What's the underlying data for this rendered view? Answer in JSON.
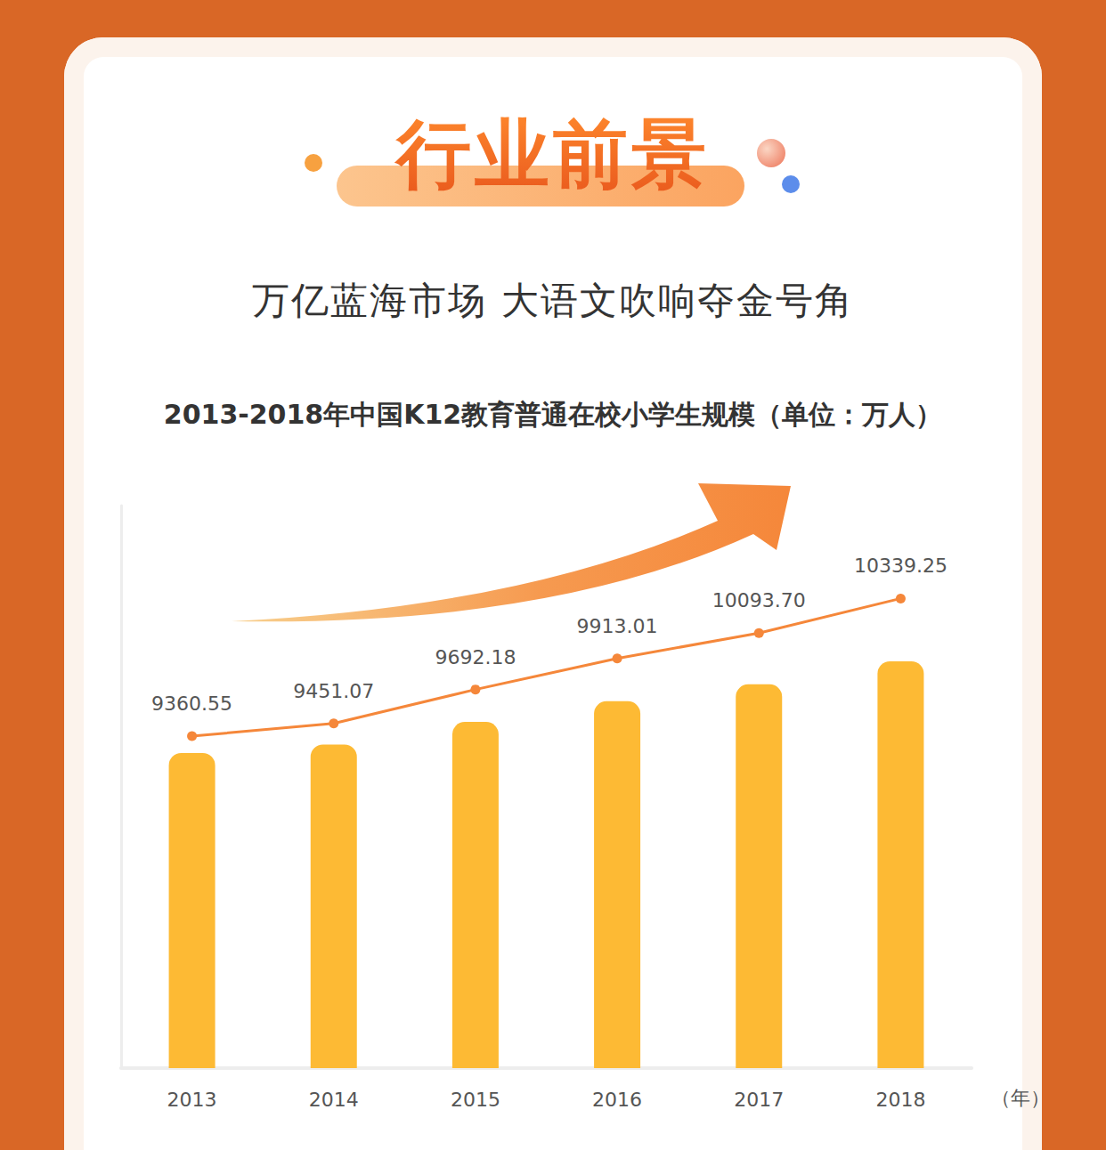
{
  "header": "行业前景",
  "subtitle": "万亿蓝海市场 大语文吹响夺金号角",
  "chart_data": {
    "type": "bar",
    "title": "2013-2018年中国K12教育普通在校小学生规模（单位：万人）",
    "xlabel": "（年）",
    "categories": [
      "2013",
      "2014",
      "2015",
      "2016",
      "2017",
      "2018"
    ],
    "series": [
      {
        "type": "bar",
        "color": "#FDBA34",
        "axis": "y",
        "values": [
          9360.55,
          9451.07,
          9692.18,
          9913.01,
          10093.7,
          10339.25
        ]
      },
      {
        "type": "line",
        "color": "#F5873A",
        "axis": "y2",
        "marker": "circle",
        "line_style": "solid",
        "data_labels": true,
        "values": [
          9360.55,
          9451.07,
          9692.18,
          9913.01,
          10093.7,
          10339.25
        ],
        "value_labels": [
          "9360.55",
          "9451.07",
          "9692.18",
          "9913.01",
          "10093.70",
          "10339.25"
        ]
      }
    ],
    "ylim": [
      6000,
      12000
    ],
    "yticks": [
      6000,
      8000,
      10000,
      12000
    ],
    "y2lim": [
      7000,
      11000
    ],
    "y2ticks": [
      7000,
      9000,
      11000
    ],
    "grid": false,
    "tick_labels": "x"
  }
}
